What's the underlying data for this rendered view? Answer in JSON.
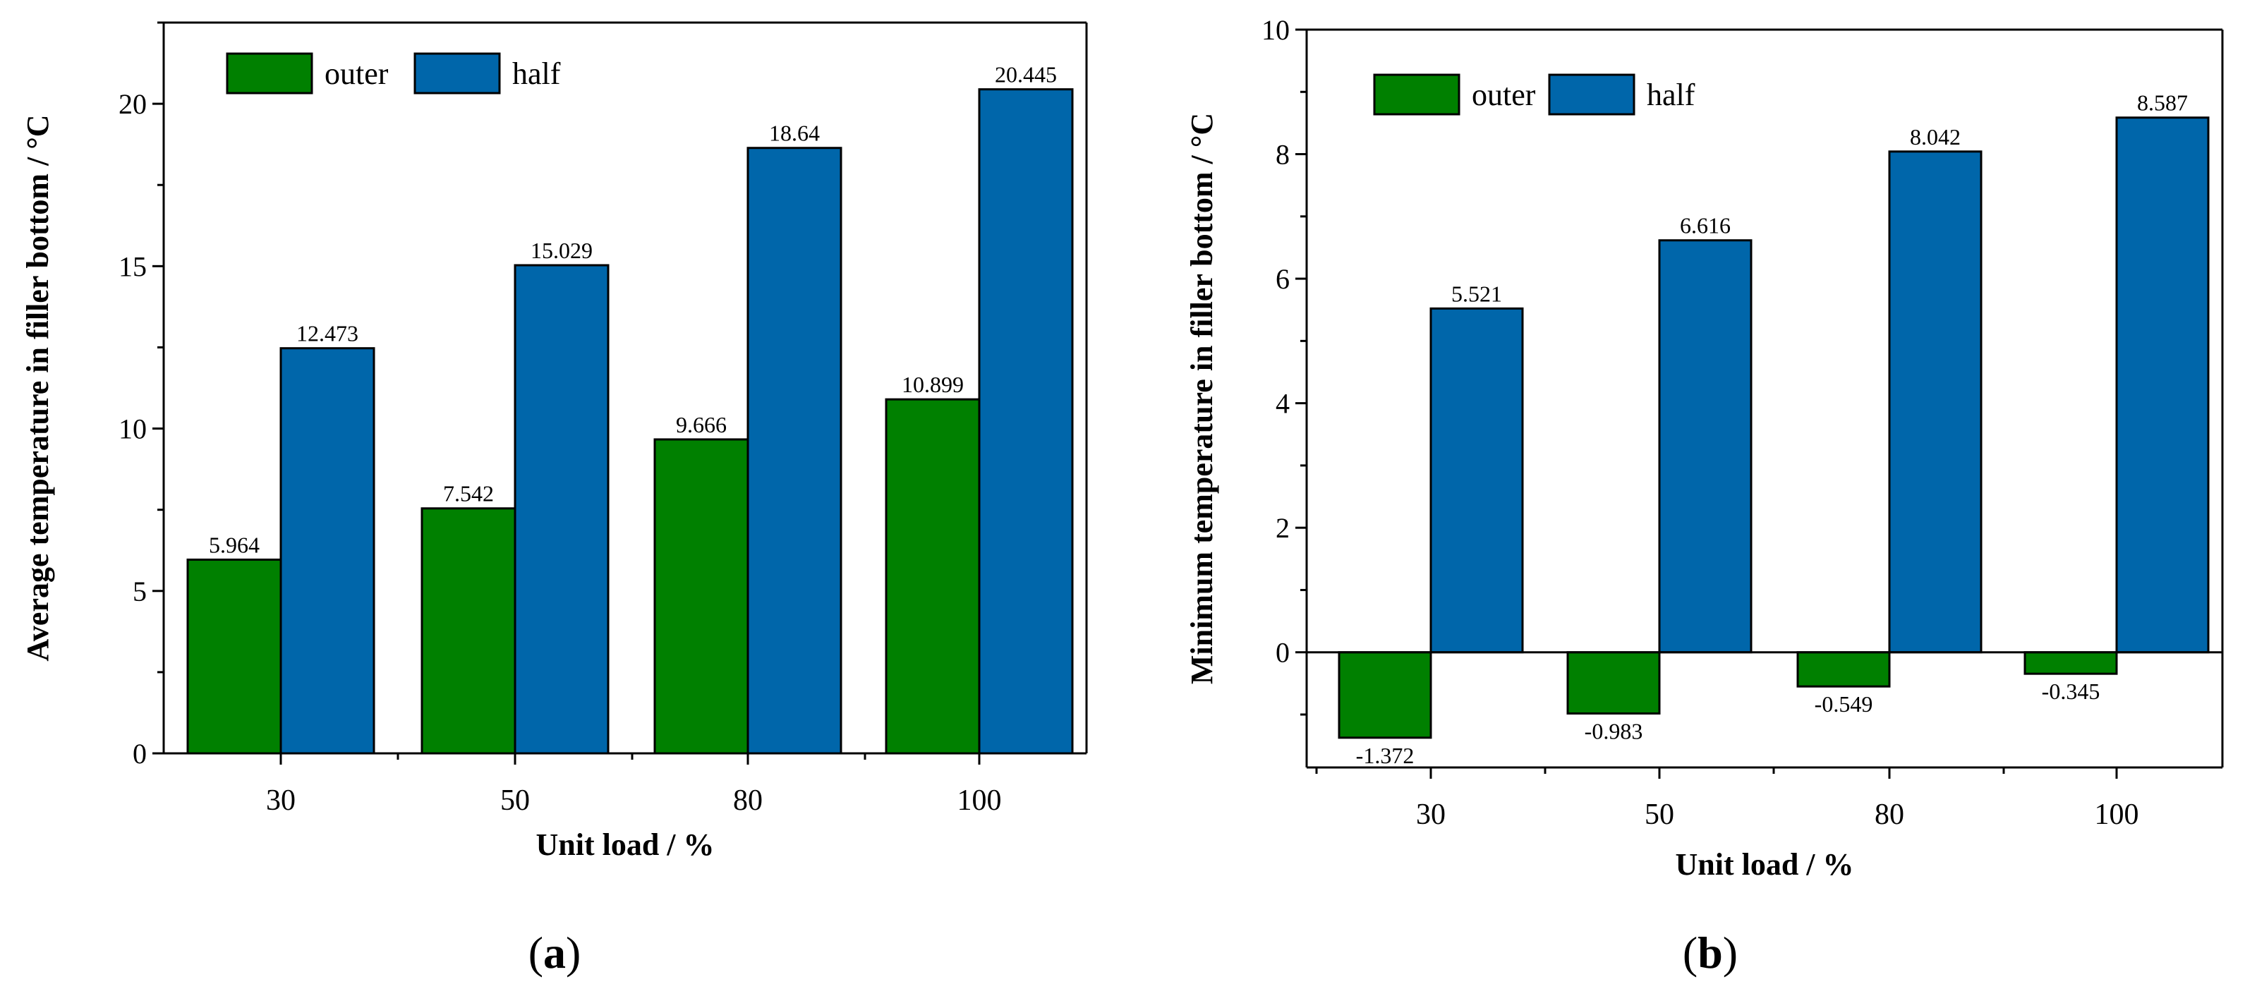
{
  "colors": {
    "outer": "#008000",
    "half": "#0066AA"
  },
  "chart_data": [
    {
      "type": "bar",
      "panel_label_open": "(",
      "panel_label_letter": "a",
      "panel_label_close": ")",
      "categories": [
        "30",
        "50",
        "80",
        "100"
      ],
      "series": [
        {
          "name": "outer",
          "values": [
            5.964,
            7.542,
            9.666,
            10.899
          ],
          "labels": [
            "5.964",
            "7.542",
            "9.666",
            "10.899"
          ]
        },
        {
          "name": "half",
          "values": [
            12.473,
            15.029,
            18.64,
            20.445
          ],
          "labels": [
            "12.473",
            "15.029",
            "18.64",
            "20.445"
          ]
        }
      ],
      "xlabel": "Unit load / %",
      "ylabel": "Average temperature in filler bottom / °C",
      "ylim": [
        0,
        22.5
      ],
      "yticks": [
        0,
        5,
        10,
        15,
        20
      ],
      "ytick_labels": [
        "0",
        "5",
        "10",
        "15",
        "20"
      ],
      "legend": "top-left",
      "grid": false
    },
    {
      "type": "bar",
      "panel_label_open": "(",
      "panel_label_letter": "b",
      "panel_label_close": ")",
      "categories": [
        "30",
        "50",
        "80",
        "100"
      ],
      "series": [
        {
          "name": "outer",
          "values": [
            -1.372,
            -0.983,
            -0.549,
            -0.345
          ],
          "labels": [
            "-1.372",
            "-0.983",
            "-0.549",
            "-0.345"
          ]
        },
        {
          "name": "half",
          "values": [
            5.521,
            6.616,
            8.042,
            8.587
          ],
          "labels": [
            "5.521",
            "6.616",
            "8.042",
            "8.587"
          ]
        }
      ],
      "xlabel": "Unit load / %",
      "ylabel": "Minimum temperature in filler bottom / °C",
      "ylim": [
        -1.85,
        10
      ],
      "yticks": [
        0,
        2,
        4,
        6,
        8,
        10
      ],
      "ytick_labels": [
        "0",
        "2",
        "4",
        "6",
        "8",
        "10"
      ],
      "legend": "top-left",
      "grid": false
    }
  ]
}
